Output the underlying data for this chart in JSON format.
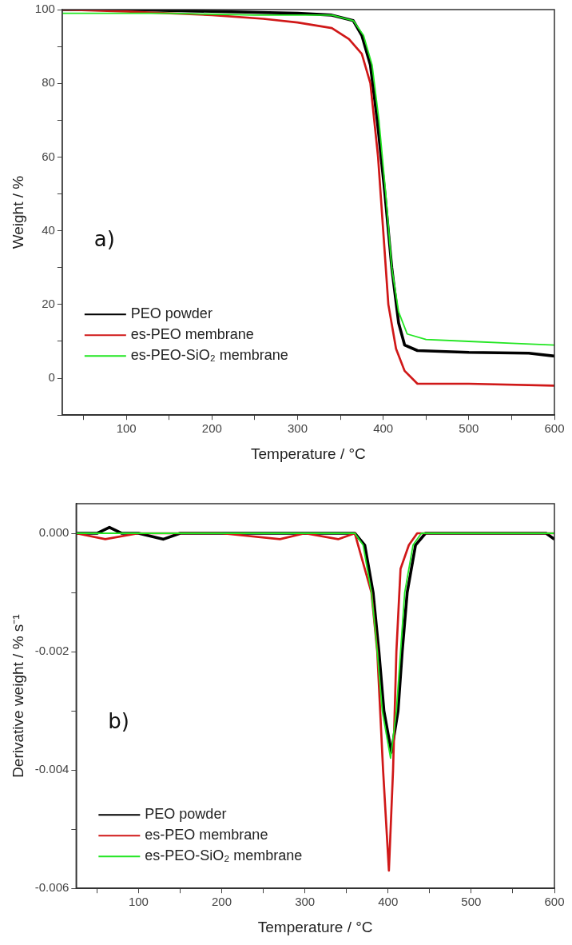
{
  "chart_data": [
    {
      "type": "line",
      "xlabel": "Temperature / °C",
      "ylabel": "Weight / %",
      "xlim": [
        25,
        600
      ],
      "ylim": [
        -10,
        100
      ],
      "xticks": [
        {
          "value": 50,
          "label": null
        },
        100,
        {
          "value": 150,
          "label": null
        },
        200,
        {
          "value": 250,
          "label": null
        },
        300,
        {
          "value": 350,
          "label": null
        },
        400,
        {
          "value": 450,
          "label": null
        },
        500,
        {
          "value": 550,
          "label": null
        },
        600
      ],
      "yticks": [
        {
          "value": -10,
          "label": null
        },
        0,
        {
          "value": 10,
          "label": null
        },
        20,
        {
          "value": 30,
          "label": null
        },
        40,
        {
          "value": 50,
          "label": null
        },
        60,
        {
          "value": 70,
          "label": null
        },
        80,
        {
          "value": 90,
          "label": null
        },
        100
      ],
      "grid": false,
      "legend": "bottom left",
      "marker": "none",
      "line_style": "solid",
      "annotations": [
        "a)"
      ],
      "series": [
        {
          "name": "PEO powder",
          "color": "#000000",
          "x": [
            25,
            100,
            200,
            300,
            340,
            365,
            375,
            385,
            393,
            402,
            410,
            418,
            425,
            440,
            500,
            570,
            600
          ],
          "values": [
            100,
            100,
            99.5,
            99,
            98.5,
            97,
            93,
            85,
            70,
            50,
            30,
            15,
            9,
            7.5,
            7,
            6.8,
            6
          ]
        },
        {
          "name": "es-PEO membrane",
          "color": "#d01818",
          "x": [
            25,
            100,
            200,
            260,
            300,
            340,
            360,
            375,
            385,
            394,
            400,
            406,
            415,
            425,
            440,
            500,
            600
          ],
          "values": [
            100,
            99.5,
            98.5,
            97.5,
            96.5,
            95,
            92,
            88,
            80,
            60,
            40,
            20,
            8,
            2,
            -1.5,
            -1.5,
            -2
          ]
        },
        {
          "name": "es-PEO-SiO₂ membrane",
          "color": "#22e622",
          "x": [
            25,
            150,
            250,
            340,
            365,
            377,
            387,
            395,
            403,
            410,
            418,
            428,
            450,
            500,
            550,
            600
          ],
          "values": [
            99,
            99,
            98.5,
            98.5,
            97,
            93,
            85,
            70,
            50,
            30,
            18,
            12,
            10.5,
            10,
            9.5,
            9
          ]
        }
      ]
    },
    {
      "type": "line",
      "xlabel": "Temperature / °C",
      "ylabel": "Derivative weight / % s⁻¹",
      "xlim": [
        25,
        600
      ],
      "ylim": [
        -0.006,
        0.0005
      ],
      "xticks": [
        {
          "value": 50,
          "label": null
        },
        100,
        {
          "value": 150,
          "label": null
        },
        200,
        {
          "value": 250,
          "label": null
        },
        300,
        {
          "value": 350,
          "label": null
        },
        400,
        {
          "value": 450,
          "label": null
        },
        500,
        {
          "value": 550,
          "label": null
        },
        600
      ],
      "yticks": [
        {
          "value": -0.006,
          "label": "-0.006"
        },
        {
          "value": -0.005,
          "label": null
        },
        {
          "value": -0.004,
          "label": "-0.004"
        },
        {
          "value": -0.003,
          "label": null
        },
        {
          "value": -0.002,
          "label": "-0.002"
        },
        {
          "value": -0.001,
          "label": null
        },
        {
          "value": 0,
          "label": "0.000"
        }
      ],
      "grid": false,
      "legend": "bottom left",
      "marker": "none",
      "line_style": "solid",
      "annotations": [
        "b)"
      ],
      "series": [
        {
          "name": "PEO powder",
          "color": "#000000",
          "x": [
            25,
            50,
            65,
            80,
            100,
            130,
            150,
            200,
            300,
            360,
            372,
            382,
            389,
            395,
            404,
            412,
            417,
            423,
            433,
            445,
            500,
            590,
            600
          ],
          "values": [
            0,
            0,
            0.0001,
            0,
            0,
            -0.0001,
            0,
            0,
            0,
            0,
            -0.0002,
            -0.001,
            -0.002,
            -0.003,
            -0.0037,
            -0.003,
            -0.002,
            -0.001,
            -0.0002,
            0,
            0,
            0,
            -0.0001
          ]
        },
        {
          "name": "es-PEO membrane",
          "color": "#d01818",
          "x": [
            25,
            60,
            100,
            200,
            270,
            300,
            340,
            360,
            380,
            387,
            394,
            401,
            406,
            410,
            415,
            425,
            435,
            500,
            600
          ],
          "values": [
            0,
            -0.0001,
            0,
            0,
            -0.0001,
            0,
            -0.0001,
            0,
            -0.001,
            -0.002,
            -0.004,
            -0.0057,
            -0.004,
            -0.002,
            -0.0006,
            -0.0002,
            0,
            0,
            0
          ]
        },
        {
          "name": "es-PEO-SiO₂ membrane",
          "color": "#22e622",
          "x": [
            25,
            300,
            360,
            370,
            380,
            387,
            393,
            403,
            410,
            415,
            420,
            430,
            440,
            600
          ],
          "values": [
            0,
            0,
            0,
            -0.0002,
            -0.001,
            -0.002,
            -0.003,
            -0.0038,
            -0.003,
            -0.002,
            -0.001,
            -0.0002,
            0,
            0
          ]
        }
      ]
    }
  ]
}
